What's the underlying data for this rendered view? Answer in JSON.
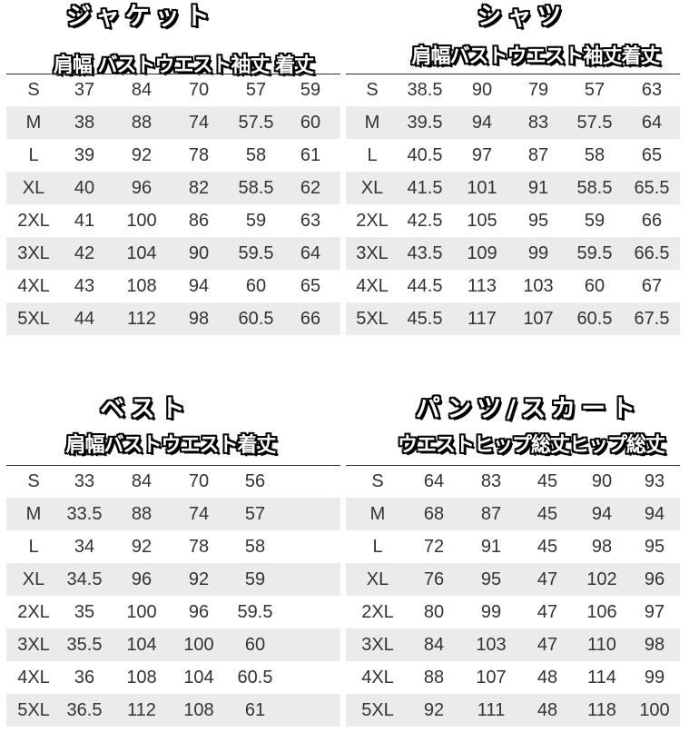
{
  "tables": [
    {
      "title": "ジャケット",
      "header": "肩幅 バストウエスト袖丈 着丈",
      "rows": [
        [
          "S",
          "37",
          "84",
          "70",
          "57",
          "59"
        ],
        [
          "M",
          "38",
          "88",
          "74",
          "57.5",
          "60"
        ],
        [
          "L",
          "39",
          "92",
          "78",
          "58",
          "61"
        ],
        [
          "XL",
          "40",
          "96",
          "82",
          "58.5",
          "62"
        ],
        [
          "2XL",
          "41",
          "100",
          "86",
          "59",
          "63"
        ],
        [
          "3XL",
          "42",
          "104",
          "90",
          "59.5",
          "64"
        ],
        [
          "4XL",
          "43",
          "108",
          "94",
          "60",
          "65"
        ],
        [
          "5XL",
          "44",
          "112",
          "98",
          "60.5",
          "66"
        ]
      ]
    },
    {
      "title": "シャツ",
      "header": "肩幅バストウエスト袖丈着丈",
      "rows": [
        [
          "S",
          "38.5",
          "90",
          "79",
          "57",
          "63"
        ],
        [
          "M",
          "39.5",
          "94",
          "83",
          "57.5",
          "64"
        ],
        [
          "L",
          "40.5",
          "97",
          "87",
          "58",
          "65"
        ],
        [
          "XL",
          "41.5",
          "101",
          "91",
          "58.5",
          "65.5"
        ],
        [
          "2XL",
          "42.5",
          "105",
          "95",
          "59",
          "66"
        ],
        [
          "3XL",
          "43.5",
          "109",
          "99",
          "59.5",
          "66.5"
        ],
        [
          "4XL",
          "44.5",
          "113",
          "103",
          "60",
          "67"
        ],
        [
          "5XL",
          "45.5",
          "117",
          "107",
          "60.5",
          "67.5"
        ]
      ]
    },
    {
      "title": "ベスト",
      "header": "肩幅バストウエスト着丈",
      "rows": [
        [
          "S",
          "33",
          "84",
          "70",
          "56"
        ],
        [
          "M",
          "33.5",
          "88",
          "74",
          "57"
        ],
        [
          "L",
          "34",
          "92",
          "78",
          "58"
        ],
        [
          "XL",
          "34.5",
          "96",
          "92",
          "59"
        ],
        [
          "2XL",
          "35",
          "100",
          "96",
          "59.5"
        ],
        [
          "3XL",
          "35.5",
          "104",
          "100",
          "60"
        ],
        [
          "4XL",
          "36",
          "108",
          "104",
          "60.5"
        ],
        [
          "5XL",
          "36.5",
          "112",
          "108",
          "61"
        ]
      ]
    },
    {
      "title": "パンツ/スカート",
      "header": "ウエストヒップ総丈ヒップ総丈",
      "rows": [
        [
          "S",
          "64",
          "83",
          "45",
          "90",
          "93"
        ],
        [
          "M",
          "68",
          "87",
          "45",
          "94",
          "94"
        ],
        [
          "L",
          "72",
          "91",
          "45",
          "98",
          "95"
        ],
        [
          "XL",
          "76",
          "95",
          "47",
          "102",
          "96"
        ],
        [
          "2XL",
          "80",
          "99",
          "47",
          "106",
          "97"
        ],
        [
          "3XL",
          "84",
          "103",
          "47",
          "110",
          "98"
        ],
        [
          "4XL",
          "88",
          "107",
          "48",
          "114",
          "99"
        ],
        [
          "5XL",
          "92",
          "111",
          "48",
          "118",
          "100"
        ]
      ]
    }
  ]
}
